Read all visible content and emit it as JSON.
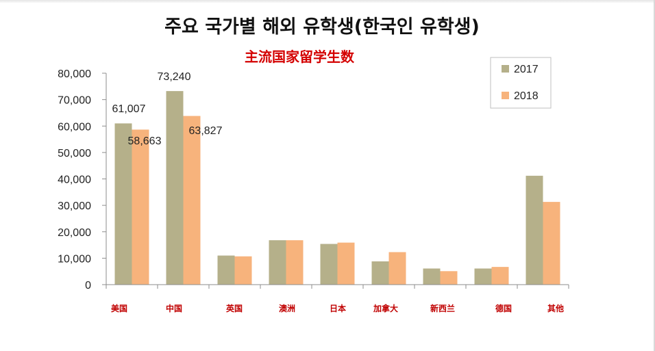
{
  "chart_data": {
    "type": "bar",
    "title": "주요 국가별 해외 유학생(한국인 유학생)",
    "subtitle": "主流国家留学生数",
    "categories": [
      "美国",
      "中国",
      "英国",
      "澳洲",
      "日本",
      "加拿大",
      "新西兰",
      "德国",
      "其他"
    ],
    "series": [
      {
        "name": "2017",
        "color": "#b5b08a",
        "values": [
          61007,
          73240,
          11000,
          16800,
          15400,
          8800,
          6100,
          6100,
          41200
        ],
        "labels": [
          "61,007",
          "73,240",
          "",
          "",
          "",
          "",
          "",
          "",
          ""
        ]
      },
      {
        "name": "2018",
        "color": "#f7b37c",
        "values": [
          58663,
          63827,
          10700,
          16800,
          15900,
          12300,
          5100,
          6700,
          31300
        ],
        "labels": [
          "58,663",
          "63,827",
          "",
          "",
          "",
          "",
          "",
          "",
          ""
        ]
      }
    ],
    "ylim": [
      0,
      80000
    ],
    "yticks": [
      0,
      10000,
      20000,
      30000,
      40000,
      50000,
      60000,
      70000,
      80000
    ],
    "ytick_labels": [
      "0",
      "10,000",
      "20,000",
      "30,000",
      "40,000",
      "50,000",
      "60,000",
      "70,000",
      "80,000"
    ],
    "xlabel": "",
    "ylabel": "",
    "grid": false,
    "legend_position": "top-right"
  }
}
